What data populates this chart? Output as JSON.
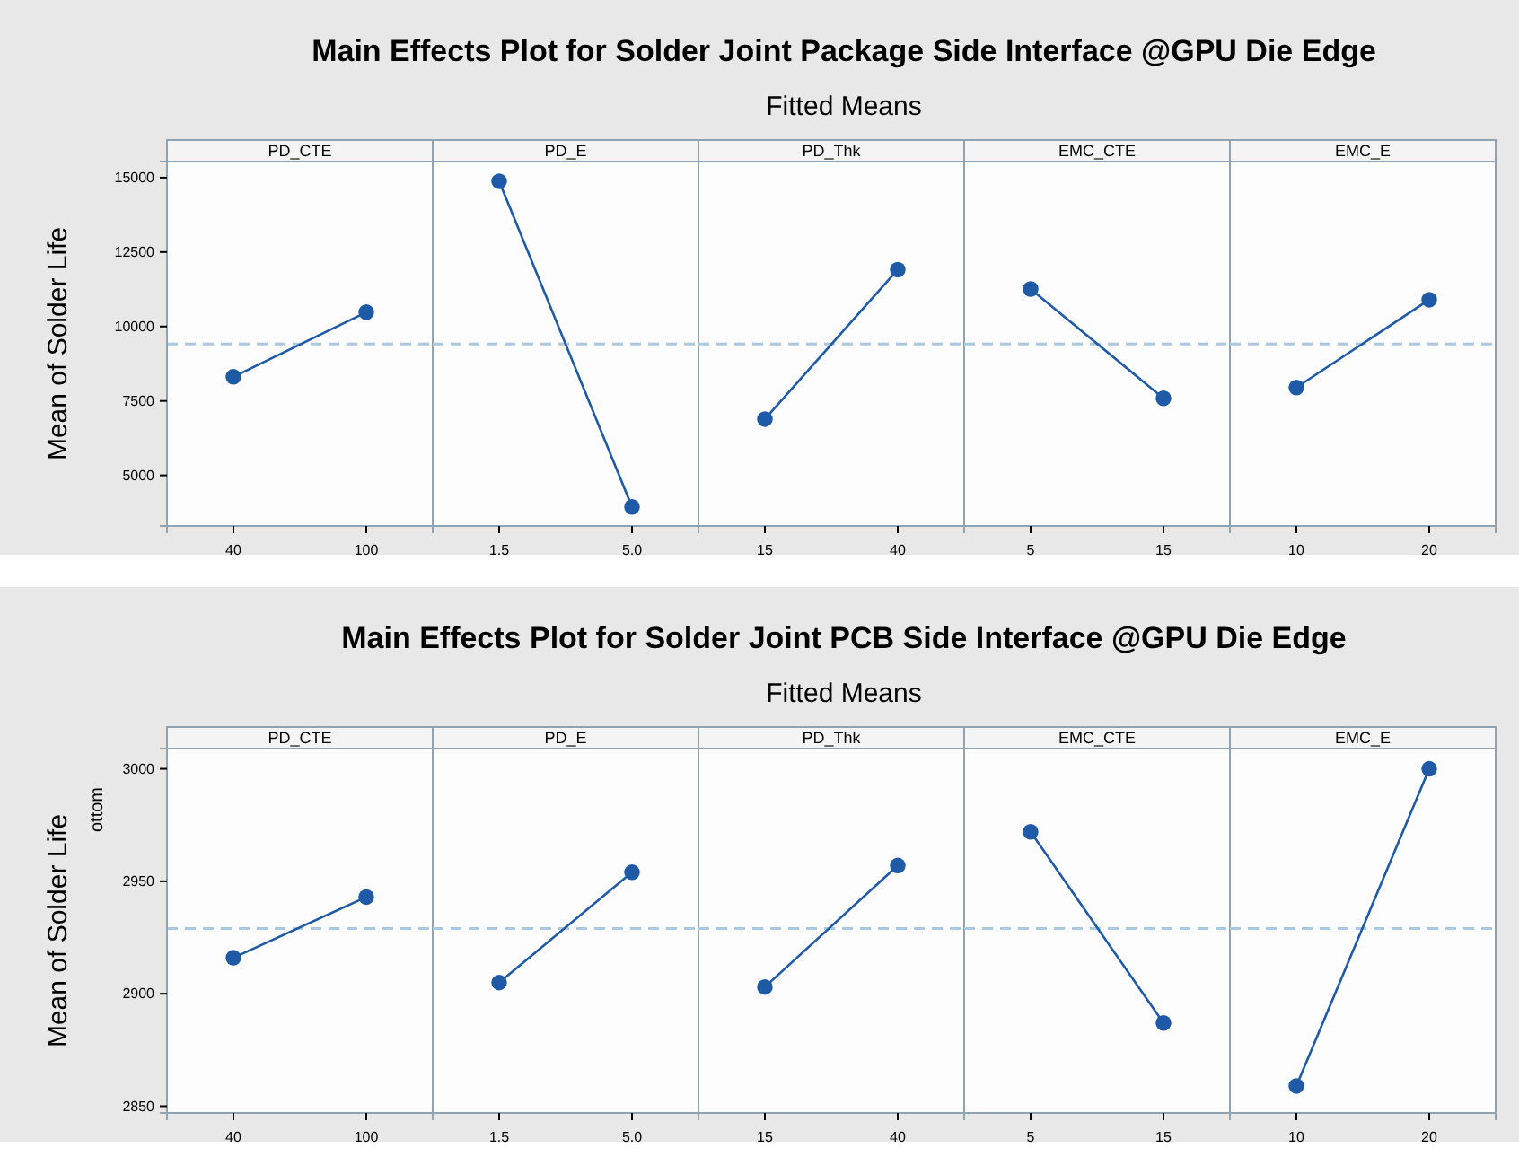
{
  "chart_data": [
    {
      "type": "other",
      "title": "Main Effects Plot for Solder Joint Package Side Interface @GPU Die Edge",
      "subtitle": "Fitted Means"
    },
    {
      "type": "line",
      "title": "PD_CTE",
      "ylabel": "Mean of Solder Life",
      "categories": [
        "40",
        "100"
      ],
      "values": [
        8310,
        10480
      ],
      "color": "#1f5aa6",
      "marker": "circle",
      "ylim": [
        3300,
        15540
      ],
      "yticks": [
        5000,
        7500,
        10000,
        12500,
        15000
      ],
      "ref_lines": [
        {
          "axis": "y",
          "value": 9410,
          "color": "#a9c9e0",
          "line_style": "dashed"
        }
      ]
    },
    {
      "type": "line",
      "title": "PD_E",
      "categories": [
        "1.5",
        "5.0"
      ],
      "values": [
        14880,
        3940
      ],
      "color": "#1f5aa6",
      "marker": "circle",
      "ylim": [
        3300,
        15540
      ],
      "tick_labels": "x",
      "ref_lines": [
        {
          "axis": "y",
          "value": 9410,
          "color": "#a9c9e0",
          "line_style": "dashed"
        }
      ]
    },
    {
      "type": "line",
      "title": "PD_Thk",
      "categories": [
        "15",
        "40"
      ],
      "values": [
        6890,
        11910
      ],
      "color": "#1f5aa6",
      "marker": "circle",
      "ylim": [
        3300,
        15540
      ],
      "tick_labels": "x",
      "ref_lines": [
        {
          "axis": "y",
          "value": 9410,
          "color": "#a9c9e0",
          "line_style": "dashed"
        }
      ]
    },
    {
      "type": "line",
      "title": "EMC_CTE",
      "categories": [
        "5",
        "15"
      ],
      "values": [
        11260,
        7590
      ],
      "color": "#1f5aa6",
      "marker": "circle",
      "ylim": [
        3300,
        15540
      ],
      "tick_labels": "x",
      "ref_lines": [
        {
          "axis": "y",
          "value": 9410,
          "color": "#a9c9e0",
          "line_style": "dashed"
        }
      ]
    },
    {
      "type": "line",
      "title": "EMC_E",
      "categories": [
        "10",
        "20"
      ],
      "values": [
        7950,
        10900
      ],
      "color": "#1f5aa6",
      "marker": "circle",
      "ylim": [
        3300,
        15540
      ],
      "tick_labels": "x",
      "ref_lines": [
        {
          "axis": "y",
          "value": 9410,
          "color": "#a9c9e0",
          "line_style": "dashed"
        }
      ]
    },
    {
      "type": "other",
      "title": "Main Effects Plot for Solder Joint PCB Side Interface @GPU Die Edge",
      "subtitle": "Fitted Means"
    },
    {
      "type": "line",
      "title": "PD_CTE",
      "ylabel": "Mean of Solder Life",
      "annotations": [
        "ottom"
      ],
      "categories": [
        "40",
        "100"
      ],
      "values": [
        2916,
        2943
      ],
      "color": "#1f5aa6",
      "marker": "circle",
      "ylim": [
        2847,
        3009
      ],
      "yticks": [
        2850,
        2900,
        2950,
        3000
      ],
      "ref_lines": [
        {
          "axis": "y",
          "value": 2929,
          "color": "#a9c9e0",
          "line_style": "dashed"
        }
      ]
    },
    {
      "type": "line",
      "title": "PD_E",
      "categories": [
        "1.5",
        "5.0"
      ],
      "values": [
        2905,
        2954
      ],
      "color": "#1f5aa6",
      "marker": "circle",
      "ylim": [
        2847,
        3009
      ],
      "tick_labels": "x",
      "ref_lines": [
        {
          "axis": "y",
          "value": 2929,
          "color": "#a9c9e0",
          "line_style": "dashed"
        }
      ]
    },
    {
      "type": "line",
      "title": "PD_Thk",
      "categories": [
        "15",
        "40"
      ],
      "values": [
        2903,
        2957
      ],
      "color": "#1f5aa6",
      "marker": "circle",
      "ylim": [
        2847,
        3009
      ],
      "tick_labels": "x",
      "ref_lines": [
        {
          "axis": "y",
          "value": 2929,
          "color": "#a9c9e0",
          "line_style": "dashed"
        }
      ]
    },
    {
      "type": "line",
      "title": "EMC_CTE",
      "categories": [
        "5",
        "15"
      ],
      "values": [
        2972,
        2887
      ],
      "color": "#1f5aa6",
      "marker": "circle",
      "ylim": [
        2847,
        3009
      ],
      "tick_labels": "x",
      "ref_lines": [
        {
          "axis": "y",
          "value": 2929,
          "color": "#a9c9e0",
          "line_style": "dashed"
        }
      ]
    },
    {
      "type": "line",
      "title": "EMC_E",
      "categories": [
        "10",
        "20"
      ],
      "values": [
        2859,
        3000
      ],
      "color": "#1f5aa6",
      "marker": "circle",
      "ylim": [
        2847,
        3009
      ],
      "tick_labels": "x",
      "ref_lines": [
        {
          "axis": "y",
          "value": 2929,
          "color": "#a9c9e0",
          "line_style": "dashed"
        }
      ]
    }
  ]
}
